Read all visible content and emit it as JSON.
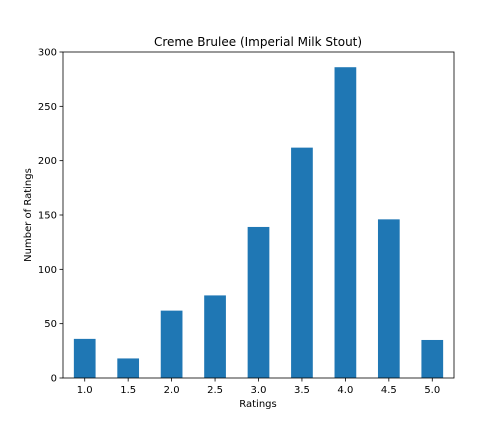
{
  "chart_data": {
    "type": "bar",
    "title": "Creme Brulee (Imperial Milk Stout)",
    "xlabel": "Ratings",
    "ylabel": "Number of Ratings",
    "categories": [
      "1.0",
      "1.5",
      "2.0",
      "2.5",
      "3.0",
      "3.5",
      "4.0",
      "4.5",
      "5.0"
    ],
    "values": [
      36,
      18,
      62,
      76,
      139,
      212,
      286,
      146,
      35
    ],
    "ylim": [
      0,
      300
    ],
    "yticks": [
      "0",
      "50",
      "100",
      "150",
      "200",
      "250",
      "300"
    ],
    "grid": false,
    "legend": "none",
    "bar_color": "#1f77b4"
  }
}
